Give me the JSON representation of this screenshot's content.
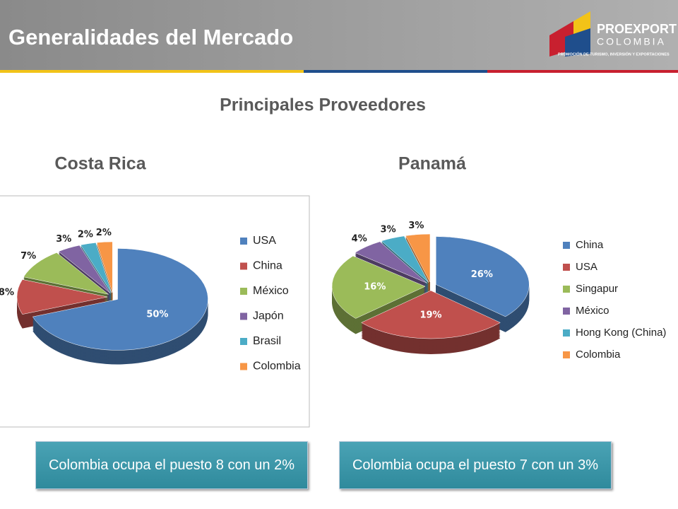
{
  "header": {
    "title": "Generalidades del Mercado",
    "logo": {
      "name": "PROEXPORT",
      "subname": "COLOMBIA",
      "tagline": "PROMOCIÓN DE TURISMO, INVERSIÓN Y EXPORTACIONES"
    }
  },
  "subtitle": "Principales Proveedores",
  "chart_data": [
    {
      "type": "pie",
      "title": "Costa Rica",
      "categories": [
        "USA",
        "China",
        "México",
        "Japón",
        "Brasil",
        "Colombia"
      ],
      "values": [
        50,
        8,
        7,
        3,
        2,
        2
      ],
      "value_labels": [
        "50%",
        "8%",
        "7%",
        "3%",
        "2%",
        "2%"
      ],
      "colors": [
        "#4f81bd",
        "#c0504d",
        "#9bbb59",
        "#8064a2",
        "#4bacc6",
        "#f79646"
      ]
    },
    {
      "type": "pie",
      "title": "Panamá",
      "categories": [
        "China",
        "USA",
        "Singapur",
        "México",
        "Hong Kong (China)",
        "Colombia"
      ],
      "values": [
        26,
        19,
        16,
        4,
        3,
        3
      ],
      "value_labels": [
        "26%",
        "19%",
        "16%",
        "4%",
        "3%",
        "3%"
      ],
      "colors": [
        "#4f81bd",
        "#c0504d",
        "#9bbb59",
        "#8064a2",
        "#4bacc6",
        "#f79646"
      ]
    }
  ],
  "callouts": [
    "Colombia ocupa el puesto 8 con un 2%",
    "Colombia ocupa el puesto 7 con un 3%"
  ]
}
